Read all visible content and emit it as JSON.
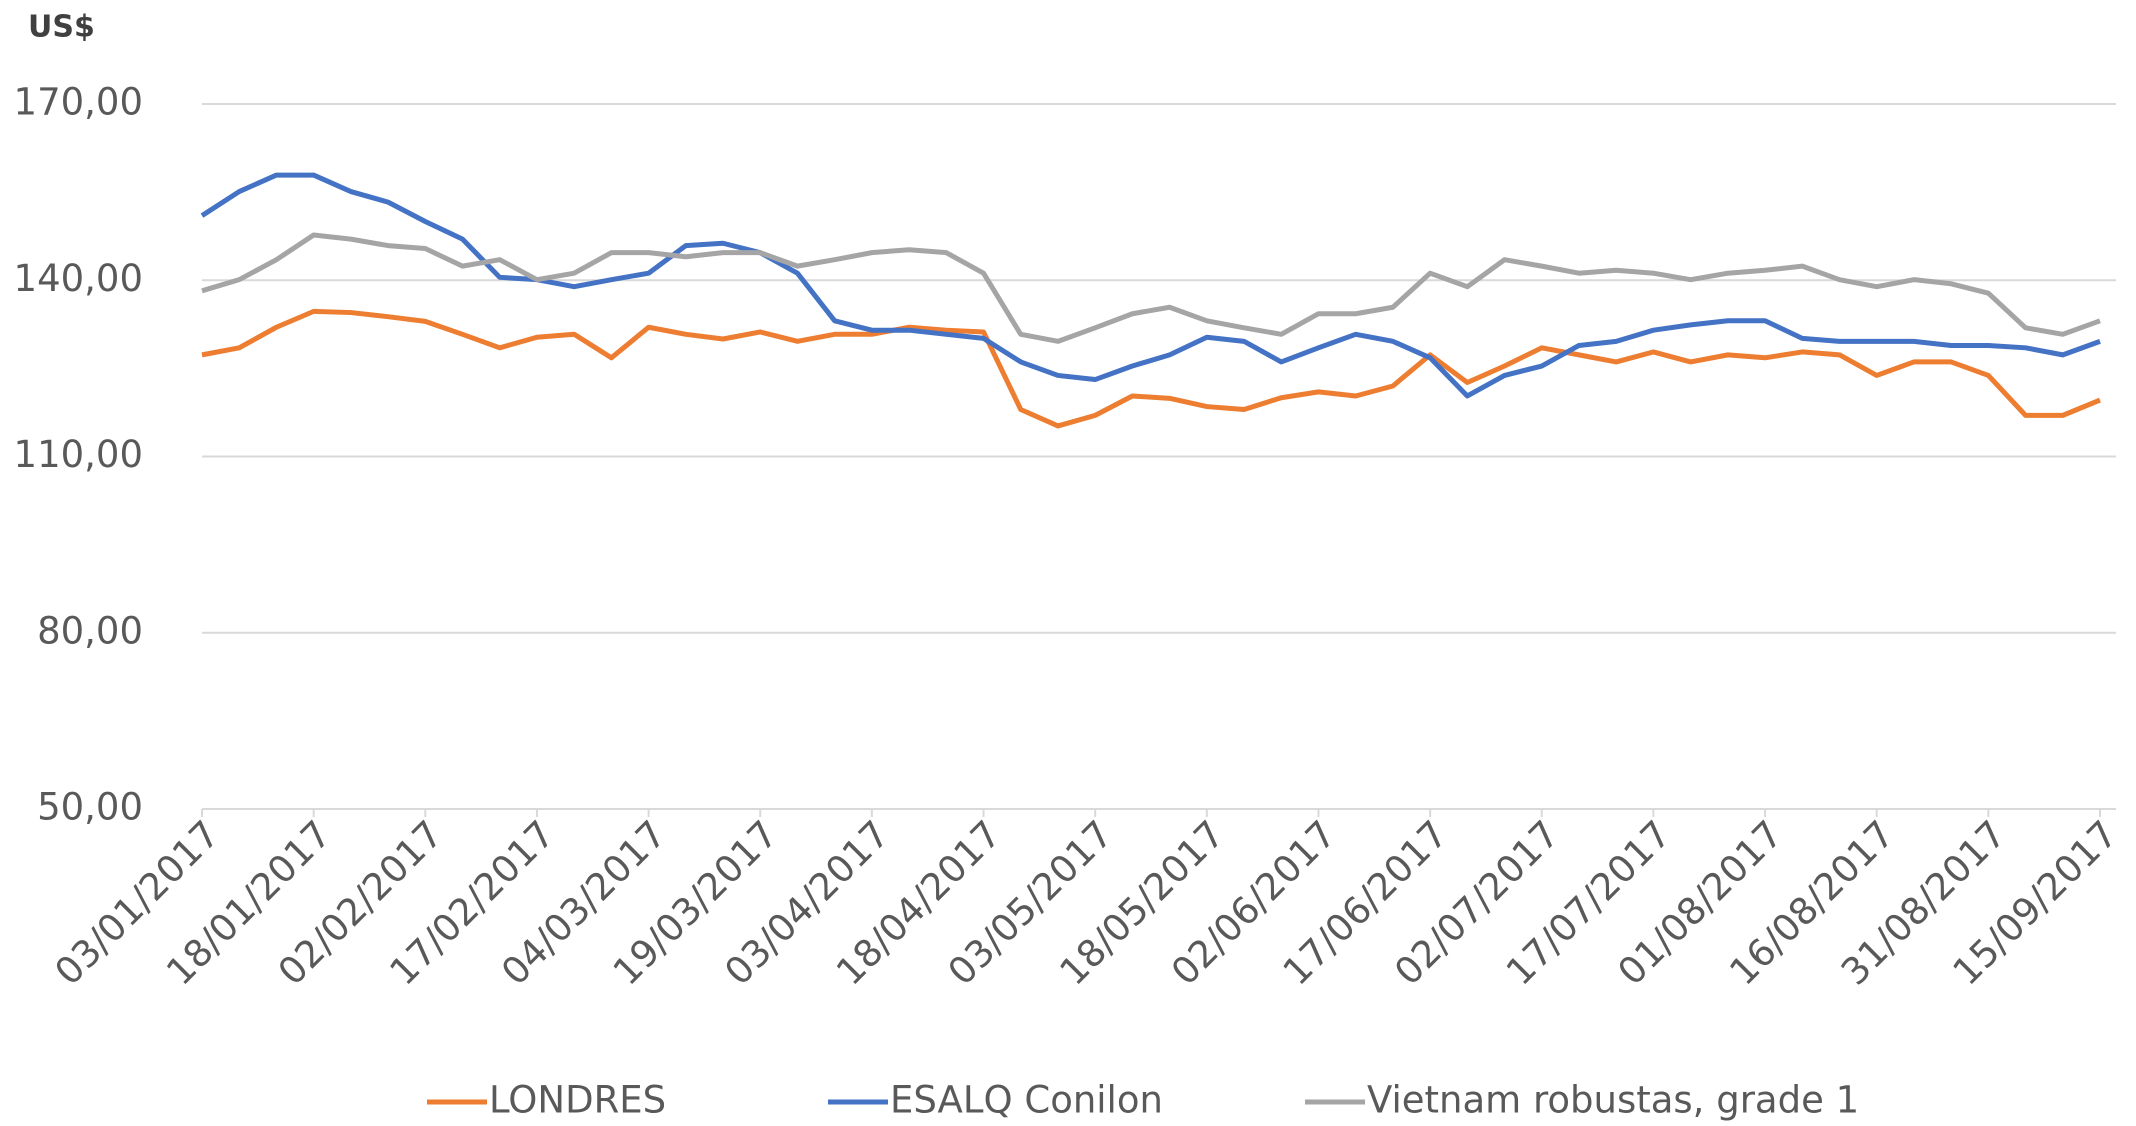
{
  "chart_data": {
    "type": "line",
    "y_label": "US$",
    "x": [
      "03/01/2017",
      "08/01/2017",
      "13/01/2017",
      "18/01/2017",
      "23/01/2017",
      "28/01/2017",
      "02/02/2017",
      "07/02/2017",
      "12/02/2017",
      "17/02/2017",
      "22/02/2017",
      "27/02/2017",
      "04/03/2017",
      "09/03/2017",
      "14/03/2017",
      "19/03/2017",
      "24/03/2017",
      "29/03/2017",
      "03/04/2017",
      "08/04/2017",
      "13/04/2017",
      "18/04/2017",
      "23/04/2017",
      "28/04/2017",
      "03/05/2017",
      "08/05/2017",
      "13/05/2017",
      "18/05/2017",
      "23/05/2017",
      "28/05/2017",
      "02/06/2017",
      "07/06/2017",
      "12/06/2017",
      "17/06/2017",
      "22/06/2017",
      "27/06/2017",
      "02/07/2017",
      "07/07/2017",
      "12/07/2017",
      "17/07/2017",
      "22/07/2017",
      "27/07/2017",
      "01/08/2017",
      "06/08/2017",
      "11/08/2017",
      "16/08/2017",
      "21/08/2017",
      "26/08/2017",
      "31/08/2017",
      "05/09/2017",
      "10/09/2017",
      "15/09/2017"
    ],
    "series": [
      {
        "name": "LONDRES",
        "color": "#ed7d31",
        "values": [
          127.3,
          128.5,
          132,
          134.7,
          134.5,
          133.8,
          133,
          130.8,
          128.5,
          130.3,
          130.8,
          126.8,
          132,
          130.8,
          130,
          131.2,
          129.6,
          130.8,
          130.8,
          132,
          131.5,
          131.2,
          118,
          115.2,
          117,
          120.3,
          119.9,
          118.5,
          118,
          120,
          121,
          120.3,
          122,
          127.3,
          122.6,
          125.4,
          128.5,
          127.3,
          126.1,
          127.8,
          126.1,
          127.3,
          126.8,
          127.8,
          127.3,
          123.8,
          126.1,
          126.1,
          123.8,
          117,
          117,
          119.6
        ]
      },
      {
        "name": "ESALQ Conilon",
        "color": "#4472c4",
        "values": [
          151,
          155.1,
          157.9,
          157.9,
          155.1,
          153.3,
          150,
          147,
          140.5,
          140.1,
          138.9,
          140.1,
          141.2,
          145.9,
          146.3,
          144.7,
          141.2,
          133.1,
          131.5,
          131.5,
          130.8,
          130.1,
          126.1,
          123.8,
          123.1,
          125.4,
          127.3,
          130.3,
          129.6,
          126.1,
          128.5,
          130.8,
          129.6,
          126.8,
          120.3,
          123.8,
          125.4,
          128.9,
          129.6,
          131.5,
          132.4,
          133.1,
          133.1,
          130.1,
          129.6,
          129.6,
          129.6,
          128.9,
          128.9,
          128.5,
          127.3,
          129.6
        ]
      },
      {
        "name": "Vietnam robustas, grade 1",
        "color": "#a5a5a5",
        "values": [
          138.2,
          140.1,
          143.5,
          147.7,
          147,
          145.9,
          145.4,
          142.4,
          143.5,
          140.1,
          141.2,
          144.7,
          144.7,
          144,
          144.7,
          144.7,
          142.4,
          143.5,
          144.7,
          145.2,
          144.7,
          141.2,
          130.8,
          129.6,
          131.9,
          134.3,
          135.4,
          133.1,
          131.9,
          130.8,
          134.3,
          134.3,
          135.4,
          141.2,
          138.9,
          143.5,
          142.4,
          141.2,
          141.7,
          141.2,
          140.1,
          141.2,
          141.7,
          142.4,
          140.1,
          138.9,
          140.1,
          139.4,
          137.8,
          131.9,
          130.8,
          133.1
        ]
      }
    ],
    "xlim": [
      "03/01/2017",
      "15/09/2017"
    ],
    "xticks": [
      "03/01/2017",
      "18/01/2017",
      "02/02/2017",
      "17/02/2017",
      "04/03/2017",
      "19/03/2017",
      "03/04/2017",
      "18/04/2017",
      "03/05/2017",
      "18/05/2017",
      "02/06/2017",
      "17/06/2017",
      "02/07/2017",
      "17/07/2017",
      "01/08/2017",
      "16/08/2017",
      "31/08/2017",
      "15/09/2017"
    ],
    "ylim": [
      50,
      170
    ],
    "yticks": [
      {
        "value": 50,
        "label": "50,00"
      },
      {
        "value": 80,
        "label": "80,00"
      },
      {
        "value": 110,
        "label": "110,00"
      },
      {
        "value": 140,
        "label": "140,00"
      },
      {
        "value": 170,
        "label": "170,00"
      }
    ],
    "grid": true,
    "legend": "bottom"
  }
}
